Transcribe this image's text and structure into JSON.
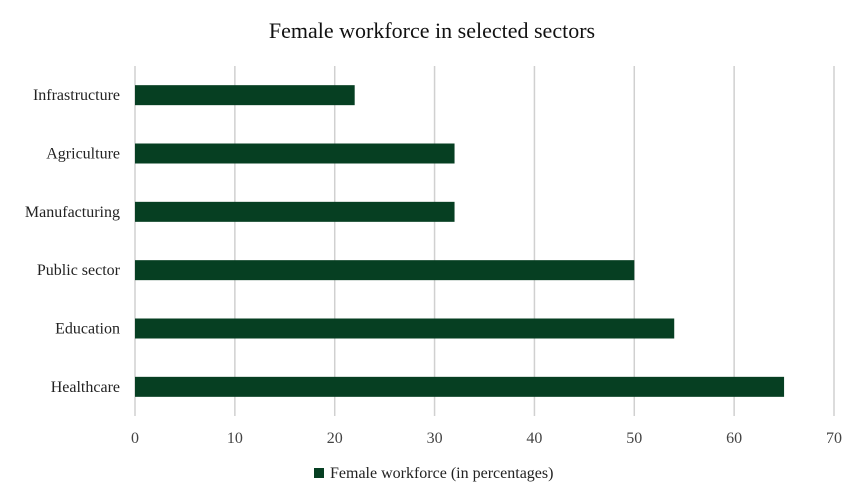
{
  "chart_data": {
    "type": "bar",
    "orientation": "horizontal",
    "title": "Female workforce in selected sectors",
    "categories": [
      "Healthcare",
      "Education",
      "Public sector",
      "Manufacturing",
      "Agriculture",
      "Infrastructure"
    ],
    "series": [
      {
        "name": "Female workforce (in percentages)",
        "values": [
          65,
          54,
          50,
          32,
          32,
          22
        ],
        "color": "#063f22"
      }
    ],
    "xlim": [
      0,
      70
    ],
    "xticks": [
      0,
      10,
      20,
      30,
      40,
      50,
      60,
      70
    ],
    "xlabel": "",
    "ylabel": "",
    "grid": "vertical",
    "legend": "bottom"
  }
}
